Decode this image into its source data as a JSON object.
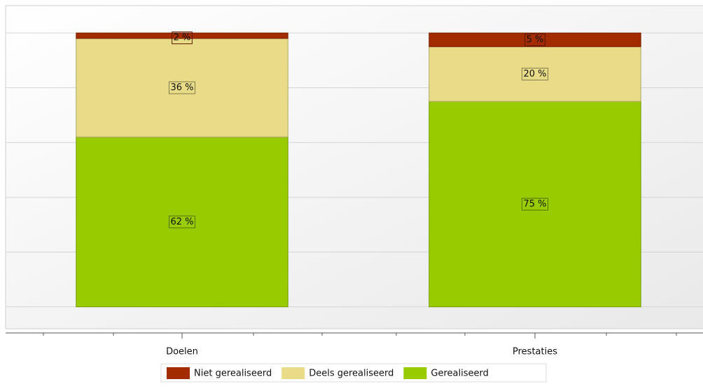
{
  "chart_data": {
    "type": "stacked_bar",
    "categories": [
      "Doelen",
      "Prestaties"
    ],
    "series": [
      {
        "name": "Niet gerealiseerd",
        "color": "#a32b00",
        "values": [
          2,
          5
        ],
        "value_labels": [
          "2 %",
          "5 %"
        ]
      },
      {
        "name": "Deels gerealiseerd",
        "color": "#e8dc88",
        "values": [
          36,
          20
        ],
        "value_labels": [
          "36 %",
          "20 %"
        ]
      },
      {
        "name": "Gerealiseerd",
        "color": "#99cc00",
        "values": [
          62,
          75
        ],
        "value_labels": [
          "62 %",
          "75 %"
        ]
      }
    ],
    "ylim": [
      -8,
      110
    ],
    "yticks": [
      0,
      20,
      40,
      60,
      80,
      100
    ],
    "grid": true
  }
}
